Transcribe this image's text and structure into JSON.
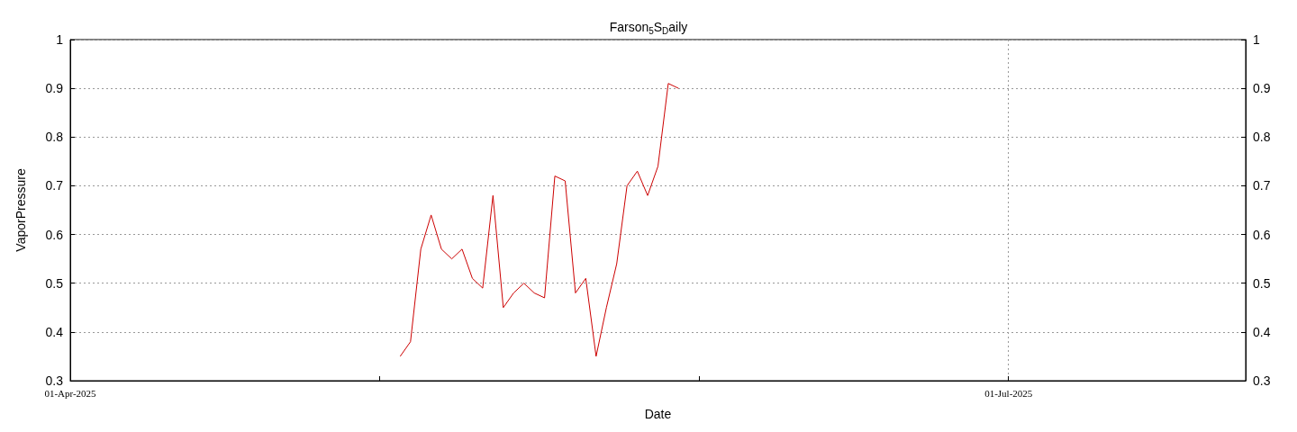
{
  "chart_data": {
    "type": "line",
    "title": "Farson$_{5}$S$_{D}$aily",
    "xlabel": "Date",
    "ylabel": "VaporPressure",
    "x": [
      "2025-05-03",
      "2025-05-04",
      "2025-05-05",
      "2025-05-06",
      "2025-05-07",
      "2025-05-08",
      "2025-05-09",
      "2025-05-10",
      "2025-05-11",
      "2025-05-12",
      "2025-05-13",
      "2025-05-14",
      "2025-05-15",
      "2025-05-16",
      "2025-05-17",
      "2025-05-18",
      "2025-05-19",
      "2025-05-20",
      "2025-05-21",
      "2025-05-22",
      "2025-05-23",
      "2025-05-24",
      "2025-05-25",
      "2025-05-26",
      "2025-05-27",
      "2025-05-28",
      "2025-05-29",
      "2025-05-30"
    ],
    "series": [
      {
        "color": "#cc0000",
        "values": [
          0.35,
          0.38,
          0.57,
          0.64,
          0.57,
          0.55,
          0.57,
          0.51,
          0.49,
          0.68,
          0.45,
          0.48,
          0.5,
          0.48,
          0.47,
          0.72,
          0.71,
          0.48,
          0.51,
          0.35,
          0.45,
          0.54,
          0.7,
          0.73,
          0.68,
          0.74,
          0.91,
          0.9
        ]
      }
    ],
    "xlim": [
      "2025-04-01",
      "2025-07-24"
    ],
    "xticks": [
      {
        "value": "2025-04-01",
        "label": "01-Apr-2025"
      },
      {
        "value": "2025-05-01",
        "label": null
      },
      {
        "value": "2025-06-01",
        "label": null
      },
      {
        "value": "2025-07-01",
        "label": "01-Jul-2025"
      }
    ],
    "ylim": [
      0.3,
      1
    ],
    "yticks": [
      0.3,
      0.4,
      0.5,
      0.6,
      0.7,
      0.8,
      0.9,
      1
    ],
    "y2lim": [
      0.3,
      1
    ],
    "y2ticks": [
      0.3,
      0.4,
      0.5,
      0.6,
      0.7,
      0.8,
      0.9,
      1
    ],
    "grid": true,
    "marker": "none",
    "line_style": "solid"
  }
}
